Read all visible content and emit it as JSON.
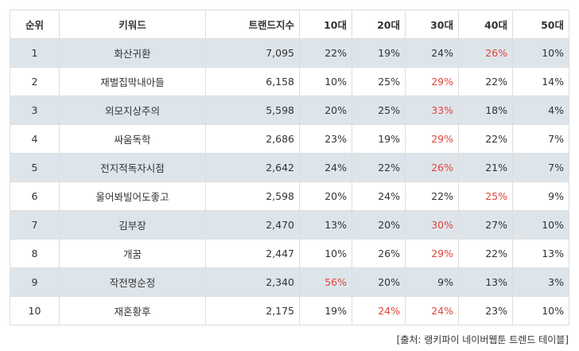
{
  "table": {
    "headers": [
      "순위",
      "키워드",
      "트랜드지수",
      "10대",
      "20대",
      "30대",
      "40대",
      "50대"
    ],
    "rows": [
      {
        "rank": "1",
        "keyword": "화산귀환",
        "index": "7,095",
        "a10": "22%",
        "a20": "19%",
        "a30": "24%",
        "a40": "26%",
        "a50": "10%",
        "highlight": [
          "a40"
        ]
      },
      {
        "rank": "2",
        "keyword": "재벌집막내아들",
        "index": "6,158",
        "a10": "10%",
        "a20": "25%",
        "a30": "29%",
        "a40": "22%",
        "a50": "14%",
        "highlight": [
          "a30"
        ]
      },
      {
        "rank": "3",
        "keyword": "외모지상주의",
        "index": "5,598",
        "a10": "20%",
        "a20": "25%",
        "a30": "33%",
        "a40": "18%",
        "a50": "4%",
        "highlight": [
          "a30"
        ]
      },
      {
        "rank": "4",
        "keyword": "싸움독학",
        "index": "2,686",
        "a10": "23%",
        "a20": "19%",
        "a30": "29%",
        "a40": "22%",
        "a50": "7%",
        "highlight": [
          "a30"
        ]
      },
      {
        "rank": "5",
        "keyword": "전지적독자시점",
        "index": "2,642",
        "a10": "24%",
        "a20": "22%",
        "a30": "26%",
        "a40": "21%",
        "a50": "7%",
        "highlight": [
          "a30"
        ]
      },
      {
        "rank": "6",
        "keyword": "울어봐빌어도좋고",
        "index": "2,598",
        "a10": "20%",
        "a20": "24%",
        "a30": "22%",
        "a40": "25%",
        "a50": "9%",
        "highlight": [
          "a40"
        ]
      },
      {
        "rank": "7",
        "keyword": "김부장",
        "index": "2,470",
        "a10": "13%",
        "a20": "20%",
        "a30": "30%",
        "a40": "27%",
        "a50": "10%",
        "highlight": [
          "a30"
        ]
      },
      {
        "rank": "8",
        "keyword": "개꿈",
        "index": "2,447",
        "a10": "10%",
        "a20": "26%",
        "a30": "29%",
        "a40": "22%",
        "a50": "13%",
        "highlight": [
          "a30"
        ]
      },
      {
        "rank": "9",
        "keyword": "작전명순정",
        "index": "2,340",
        "a10": "56%",
        "a20": "20%",
        "a30": "9%",
        "a40": "13%",
        "a50": "3%",
        "highlight": [
          "a10"
        ]
      },
      {
        "rank": "10",
        "keyword": "재혼황후",
        "index": "2,175",
        "a10": "19%",
        "a20": "24%",
        "a30": "24%",
        "a40": "23%",
        "a50": "10%",
        "highlight": [
          "a20",
          "a30"
        ]
      }
    ]
  },
  "source": "[출처: 랭키파이 네이버웹툰 트렌드 테이블]",
  "colors": {
    "highlight": "#e0433a",
    "row_shade": "#dde5eb",
    "border": "#dddddd",
    "text": "#333333"
  }
}
